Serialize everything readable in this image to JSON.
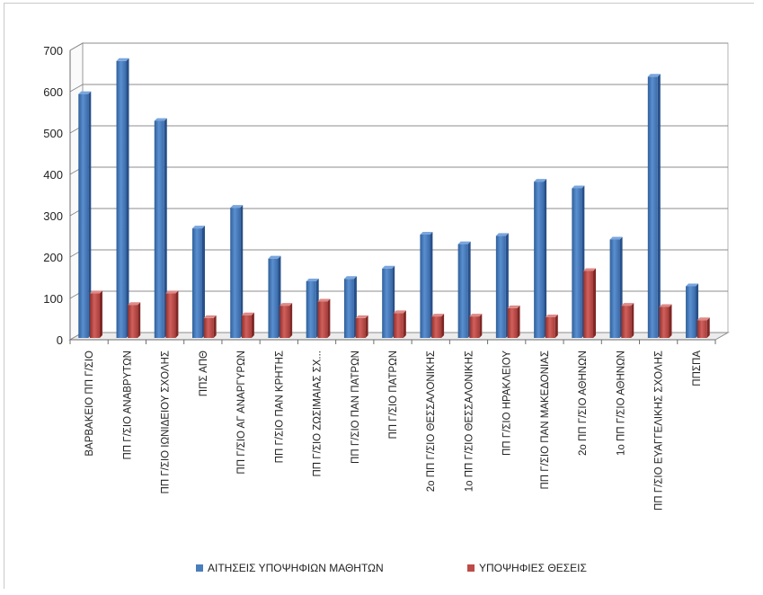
{
  "chart_data": {
    "type": "bar",
    "bar_style": "3d-clustered-column",
    "categories": [
      "ΒΑΡΒΑΚΕΙΟ ΠΠ Γ/ΣΙΟ",
      "ΠΠ Γ/ΣΙΟ ΑΝΑΒΡΥΤΩΝ",
      "ΠΠ Γ/ΣΙΟ ΙΩΝΙΔΕΙΟΥ ΣΧΟΛΗΣ",
      "ΠΠΣ ΑΠΘ",
      "ΠΠ Γ/ΣΙΟ ΑΓ ΑΝΑΡΓΥΡΩΝ",
      "ΠΠ Γ/ΣΙΟ ΠΑΝ ΚΡΗΤΗΣ",
      "ΠΠ Γ/ΣΙΟ ΖΩΣΙΜΑΙΑΣ ΣΧ...",
      "ΠΠ Γ/ΣΙΟ ΠΑΝ ΠΑΤΡΩΝ",
      "ΠΠ Γ/ΣΙΟ ΠΑΤΡΩΝ",
      "2ο ΠΠ Γ/ΣΙΟ ΘΕΣΣΑΛΟΝΙΚΗΣ",
      "1ο ΠΠ Γ/ΣΙΟ ΘΕΣΣΑΛΟΝΙΚΗΣ",
      "ΠΠ Γ/ΣΙΟ ΗΡΑΚΛΕΙΟΥ",
      "ΠΠ Γ/ΣΙΟ ΠΑΝ ΜΑΚΕΔΟΝΙΑΣ",
      "2ο ΠΠ Γ/ΣΙΟ ΑΘΗΝΩΝ",
      "1ο ΠΠ Γ/ΣΙΟ ΑΘΗΝΩΝ",
      "ΠΠ Γ/ΣΙΟ ΕΥΑΓΓΕΛΙΚΗΣ ΣΧΟΛΗΣ",
      "ΠΠΣΠΑ"
    ],
    "series": [
      {
        "name": "ΑΙΤΗΣΕΙΣ ΥΠΟΨΗΦΙΩΝ ΜΑΘΗΤΩΝ",
        "color": "#4a7ebb",
        "values": [
          590,
          670,
          525,
          265,
          315,
          192,
          137,
          143,
          168,
          250,
          227,
          247,
          378,
          362,
          238,
          632,
          125
        ]
      },
      {
        "name": "ΥΠΟΨΗΦΙΕΣ ΘΕΣΕΙΣ",
        "color": "#be4b48",
        "values": [
          108,
          80,
          108,
          48,
          55,
          78,
          88,
          48,
          60,
          52,
          52,
          72,
          50,
          162,
          78,
          75,
          43
        ]
      }
    ],
    "y_ticks": [
      0,
      100,
      200,
      300,
      400,
      500,
      600,
      700
    ],
    "ylim": [
      0,
      700
    ],
    "grid": true,
    "legend_position": "bottom"
  }
}
